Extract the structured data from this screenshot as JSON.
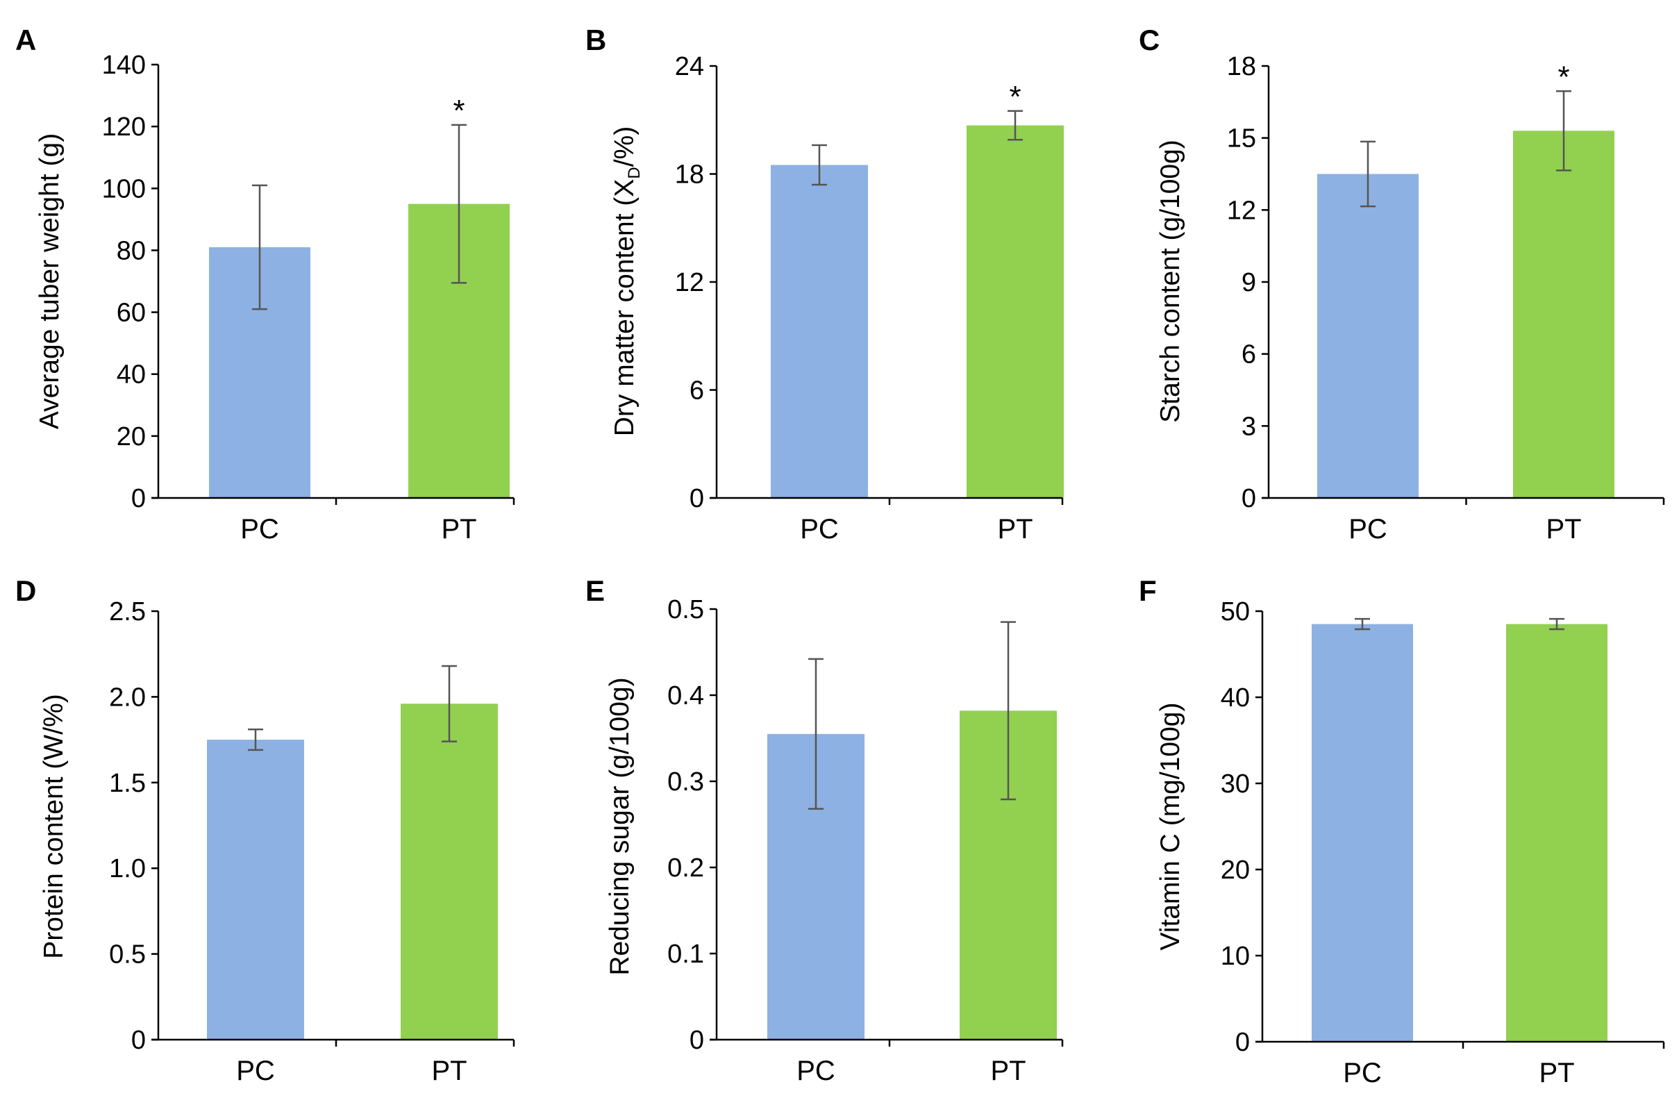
{
  "figure": {
    "background": "#ffffff",
    "bar_colors": {
      "PC": "#8db1e2",
      "PT": "#92d050"
    },
    "error_bar_color": "#555555"
  },
  "chart_data": [
    {
      "type": "bar",
      "panel": "A",
      "categories": [
        "PC",
        "PT"
      ],
      "values": [
        81,
        95
      ],
      "errors": [
        20,
        25.5
      ],
      "significance": [
        "",
        "*"
      ],
      "ylabel": "Average tuber weight (g)",
      "ylabel_main": "Average tuber weight (g)",
      "ylabel_sub": "",
      "ylabel_tail": "",
      "ylim": [
        0,
        140
      ],
      "yticks": [
        0,
        20,
        40,
        60,
        80,
        100,
        120,
        140
      ],
      "ytick_labels": [
        "0",
        "20",
        "40",
        "60",
        "80",
        "100",
        "120",
        "140"
      ]
    },
    {
      "type": "bar",
      "panel": "B",
      "categories": [
        "PC",
        "PT"
      ],
      "values": [
        18.5,
        20.7
      ],
      "errors": [
        1.1,
        0.8
      ],
      "significance": [
        "",
        "*"
      ],
      "ylabel": "Dry matter content (XD/%)",
      "ylabel_main": "Dry matter content (X",
      "ylabel_sub": "D",
      "ylabel_tail": "/%)",
      "ylim": [
        0,
        24
      ],
      "yticks": [
        0,
        6,
        12,
        18,
        24
      ],
      "ytick_labels": [
        "0",
        "6",
        "12",
        "18",
        "24"
      ]
    },
    {
      "type": "bar",
      "panel": "C",
      "categories": [
        "PC",
        "PT"
      ],
      "values": [
        13.5,
        15.3
      ],
      "errors": [
        1.35,
        1.65
      ],
      "significance": [
        "",
        "*"
      ],
      "ylabel": "Starch content (g/100g)",
      "ylabel_main": "Starch content (g/100g)",
      "ylabel_sub": "",
      "ylabel_tail": "",
      "ylim": [
        0,
        18
      ],
      "yticks": [
        0,
        3,
        6,
        9,
        12,
        15,
        18
      ],
      "ytick_labels": [
        "0",
        "3",
        "6",
        "9",
        "12",
        "15",
        "18"
      ]
    },
    {
      "type": "bar",
      "panel": "D",
      "categories": [
        "PC",
        "PT"
      ],
      "values": [
        1.75,
        1.96
      ],
      "errors": [
        0.06,
        0.22
      ],
      "significance": [
        "",
        ""
      ],
      "ylabel": "Protein content (W/%)",
      "ylabel_main": "Protein content (W/%)",
      "ylabel_sub": "",
      "ylabel_tail": "",
      "ylim": [
        0,
        2.5
      ],
      "yticks": [
        0,
        0.5,
        1.0,
        1.5,
        2.0,
        2.5
      ],
      "ytick_labels": [
        "0",
        "0.5",
        "1.0",
        "1.5",
        "2.0",
        "2.5"
      ]
    },
    {
      "type": "bar",
      "panel": "E",
      "categories": [
        "PC",
        "PT"
      ],
      "values": [
        0.355,
        0.382
      ],
      "errors": [
        0.087,
        0.103
      ],
      "significance": [
        "",
        ""
      ],
      "ylabel": "Reducing sugar (g/100g)",
      "ylabel_main": "Reducing sugar (g/100g)",
      "ylabel_sub": "",
      "ylabel_tail": "",
      "ylim": [
        0,
        0.5
      ],
      "yticks": [
        0,
        0.1,
        0.2,
        0.3,
        0.4,
        0.5
      ],
      "ytick_labels": [
        "0",
        "0.1",
        "0.2",
        "0.3",
        "0.4",
        "0.5"
      ]
    },
    {
      "type": "bar",
      "panel": "F",
      "categories": [
        "PC",
        "PT"
      ],
      "values": [
        48.5,
        48.5
      ],
      "errors": [
        0.6,
        0.6
      ],
      "significance": [
        "",
        ""
      ],
      "ylabel": "Vitamin C (mg/100g)",
      "ylabel_main": "Vitamin C (mg/100g)",
      "ylabel_sub": "",
      "ylabel_tail": "",
      "ylim": [
        0,
        50
      ],
      "yticks": [
        0,
        10,
        20,
        30,
        40,
        50
      ],
      "ytick_labels": [
        "0",
        "10",
        "20",
        "30",
        "40",
        "50"
      ]
    }
  ]
}
